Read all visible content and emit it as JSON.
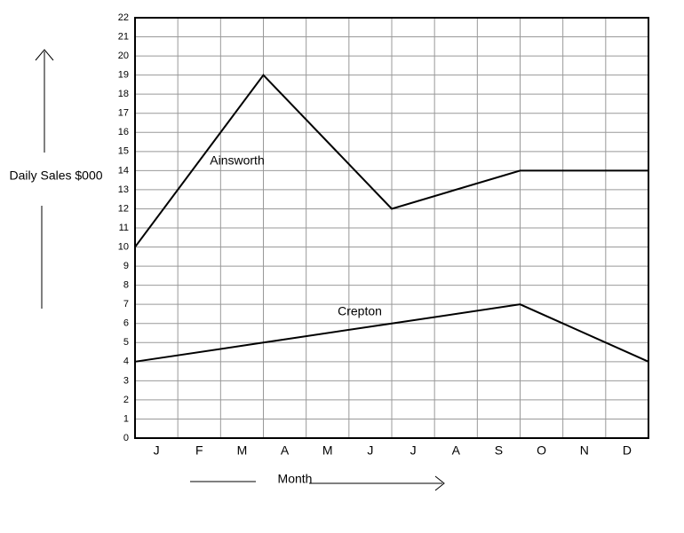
{
  "chart_data": {
    "type": "line",
    "y_label": "Daily Sales $000",
    "x_label": "Month",
    "categories": [
      "J",
      "F",
      "M",
      "A",
      "M",
      "J",
      "J",
      "A",
      "S",
      "O",
      "N",
      "D"
    ],
    "x": [
      0,
      3,
      6,
      9,
      12
    ],
    "xlim": [
      0,
      12
    ],
    "series": [
      {
        "name": "Ainsworth",
        "color": "#000000",
        "values": [
          10,
          19,
          12,
          14,
          14
        ]
      },
      {
        "name": "Crepton",
        "color": "#000000",
        "values": [
          4,
          5,
          6,
          7,
          4
        ]
      }
    ],
    "ylim": [
      0,
      22
    ],
    "yticks": [
      0,
      1,
      2,
      3,
      4,
      5,
      6,
      7,
      8,
      9,
      10,
      11,
      12,
      13,
      14,
      15,
      16,
      17,
      18,
      19,
      20,
      21,
      22
    ],
    "grid": true
  }
}
